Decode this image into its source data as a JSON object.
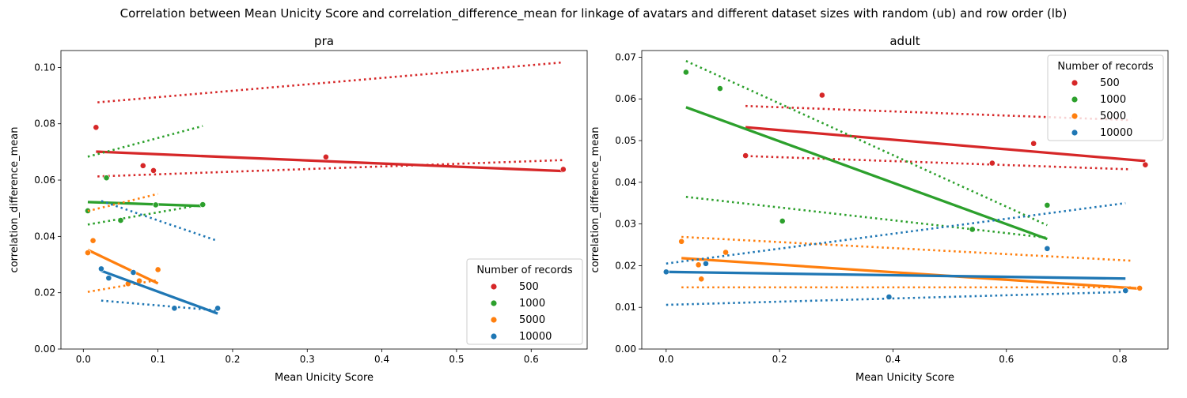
{
  "figure": {
    "suptitle": "Correlation between Mean Unicity Score and correlation_difference_mean for linkage of avatars and different dataset sizes with random (ub) and row order (lb)"
  },
  "colors": {
    "500": "#d62728",
    "1000": "#2ca02c",
    "5000": "#ff7f0e",
    "10000": "#1f77b4"
  },
  "chart_data": [
    {
      "type": "scatter",
      "title": "pra",
      "xlabel": "Mean Unicity Score",
      "ylabel": "correlation_difference_mean",
      "xlim": [
        -0.03,
        0.675
      ],
      "ylim": [
        0,
        0.106
      ],
      "xticks": [
        0.0,
        0.1,
        0.2,
        0.3,
        0.4,
        0.5,
        0.6
      ],
      "xtick_labels": [
        "0.0",
        "0.1",
        "0.2",
        "0.3",
        "0.4",
        "0.5",
        "0.6"
      ],
      "yticks": [
        0.0,
        0.02,
        0.04,
        0.06,
        0.08,
        0.1
      ],
      "ytick_labels": [
        "0.00",
        "0.02",
        "0.04",
        "0.06",
        "0.08",
        "0.10"
      ],
      "legend": {
        "title": "Number of records",
        "position": "lower-right",
        "entries": [
          "500",
          "1000",
          "5000",
          "10000"
        ]
      },
      "series": [
        {
          "name": "500",
          "points": [
            [
              0.017,
              0.0787
            ],
            [
              0.08,
              0.0651
            ],
            [
              0.094,
              0.0634
            ],
            [
              0.325,
              0.0682
            ],
            [
              0.643,
              0.0638
            ]
          ],
          "fit": [
            [
              0.017,
              0.0701
            ],
            [
              0.643,
              0.0632
            ]
          ],
          "upper": [
            [
              0.019,
              0.0876
            ],
            [
              0.643,
              0.1018
            ]
          ],
          "lower": [
            [
              0.019,
              0.0613
            ],
            [
              0.643,
              0.0671
            ]
          ]
        },
        {
          "name": "1000",
          "points": [
            [
              0.006,
              0.0491
            ],
            [
              0.031,
              0.0608
            ],
            [
              0.05,
              0.0457
            ],
            [
              0.097,
              0.0512
            ],
            [
              0.16,
              0.0513
            ]
          ],
          "fit": [
            [
              0.006,
              0.0522
            ],
            [
              0.16,
              0.0508
            ]
          ],
          "upper": [
            [
              0.006,
              0.0683
            ],
            [
              0.16,
              0.0792
            ]
          ],
          "lower": [
            [
              0.006,
              0.0442
            ],
            [
              0.16,
              0.0513
            ]
          ]
        },
        {
          "name": "5000",
          "points": [
            [
              0.006,
              0.0342
            ],
            [
              0.013,
              0.0385
            ],
            [
              0.06,
              0.0232
            ],
            [
              0.075,
              0.0242
            ],
            [
              0.1,
              0.0282
            ]
          ],
          "fit": [
            [
              0.006,
              0.0352
            ],
            [
              0.1,
              0.0233
            ]
          ],
          "upper": [
            [
              0.006,
              0.049
            ],
            [
              0.1,
              0.0551
            ]
          ],
          "lower": [
            [
              0.006,
              0.0203
            ],
            [
              0.1,
              0.0245
            ]
          ]
        },
        {
          "name": "10000",
          "points": [
            [
              0.024,
              0.0285
            ],
            [
              0.034,
              0.0252
            ],
            [
              0.067,
              0.0272
            ],
            [
              0.122,
              0.0145
            ],
            [
              0.18,
              0.0145
            ]
          ],
          "fit": [
            [
              0.024,
              0.0278
            ],
            [
              0.18,
              0.0126
            ]
          ],
          "upper": [
            [
              0.024,
              0.0526
            ],
            [
              0.18,
              0.0384
            ]
          ],
          "lower": [
            [
              0.024,
              0.0172
            ],
            [
              0.18,
              0.0137
            ]
          ]
        }
      ]
    },
    {
      "type": "scatter",
      "title": "adult",
      "xlabel": "Mean Unicity Score",
      "ylabel": "correlation_difference_mean",
      "xlim": [
        -0.043,
        0.885
      ],
      "ylim": [
        0,
        0.0716
      ],
      "xticks": [
        0.0,
        0.2,
        0.4,
        0.6,
        0.8
      ],
      "xtick_labels": [
        "0.0",
        "0.2",
        "0.4",
        "0.6",
        "0.8"
      ],
      "yticks": [
        0.0,
        0.01,
        0.02,
        0.03,
        0.04,
        0.05,
        0.06,
        0.07
      ],
      "ytick_labels": [
        "0.00",
        "0.01",
        "0.02",
        "0.03",
        "0.04",
        "0.05",
        "0.06",
        "0.07"
      ],
      "legend": {
        "title": "Number of records",
        "position": "upper-right",
        "entries": [
          "500",
          "1000",
          "5000",
          "10000"
        ]
      },
      "series": [
        {
          "name": "500",
          "points": [
            [
              0.14,
              0.0464
            ],
            [
              0.275,
              0.0609
            ],
            [
              0.575,
              0.0446
            ],
            [
              0.648,
              0.0493
            ],
            [
              0.845,
              0.0442
            ]
          ],
          "fit": [
            [
              0.14,
              0.0532
            ],
            [
              0.845,
              0.0451
            ]
          ],
          "upper": [
            [
              0.14,
              0.0583
            ],
            [
              0.82,
              0.0549
            ]
          ],
          "lower": [
            [
              0.14,
              0.0463
            ],
            [
              0.82,
              0.0431
            ]
          ]
        },
        {
          "name": "1000",
          "points": [
            [
              0.035,
              0.0664
            ],
            [
              0.095,
              0.0625
            ],
            [
              0.205,
              0.0307
            ],
            [
              0.54,
              0.0287
            ],
            [
              0.672,
              0.0345
            ]
          ],
          "fit": [
            [
              0.035,
              0.058
            ],
            [
              0.672,
              0.0264
            ]
          ],
          "upper": [
            [
              0.035,
              0.0691
            ],
            [
              0.672,
              0.0297
            ]
          ],
          "lower": [
            [
              0.035,
              0.0365
            ],
            [
              0.672,
              0.0267
            ]
          ]
        },
        {
          "name": "5000",
          "points": [
            [
              0.027,
              0.0258
            ],
            [
              0.057,
              0.0202
            ],
            [
              0.062,
              0.0168
            ],
            [
              0.105,
              0.0232
            ],
            [
              0.835,
              0.0146
            ]
          ],
          "fit": [
            [
              0.027,
              0.0218
            ],
            [
              0.835,
              0.0145
            ]
          ],
          "upper": [
            [
              0.027,
              0.0269
            ],
            [
              0.82,
              0.0212
            ]
          ],
          "lower": [
            [
              0.027,
              0.0148
            ],
            [
              0.82,
              0.0148
            ]
          ]
        },
        {
          "name": "10000",
          "points": [
            [
              0.0,
              0.0185
            ],
            [
              0.07,
              0.0205
            ],
            [
              0.393,
              0.0125
            ],
            [
              0.672,
              0.0241
            ],
            [
              0.81,
              0.014
            ]
          ],
          "fit": [
            [
              0.0,
              0.0185
            ],
            [
              0.81,
              0.0169
            ]
          ],
          "upper": [
            [
              0.0,
              0.0205
            ],
            [
              0.81,
              0.035
            ]
          ],
          "lower": [
            [
              0.0,
              0.0106
            ],
            [
              0.81,
              0.0137
            ]
          ]
        }
      ]
    }
  ]
}
